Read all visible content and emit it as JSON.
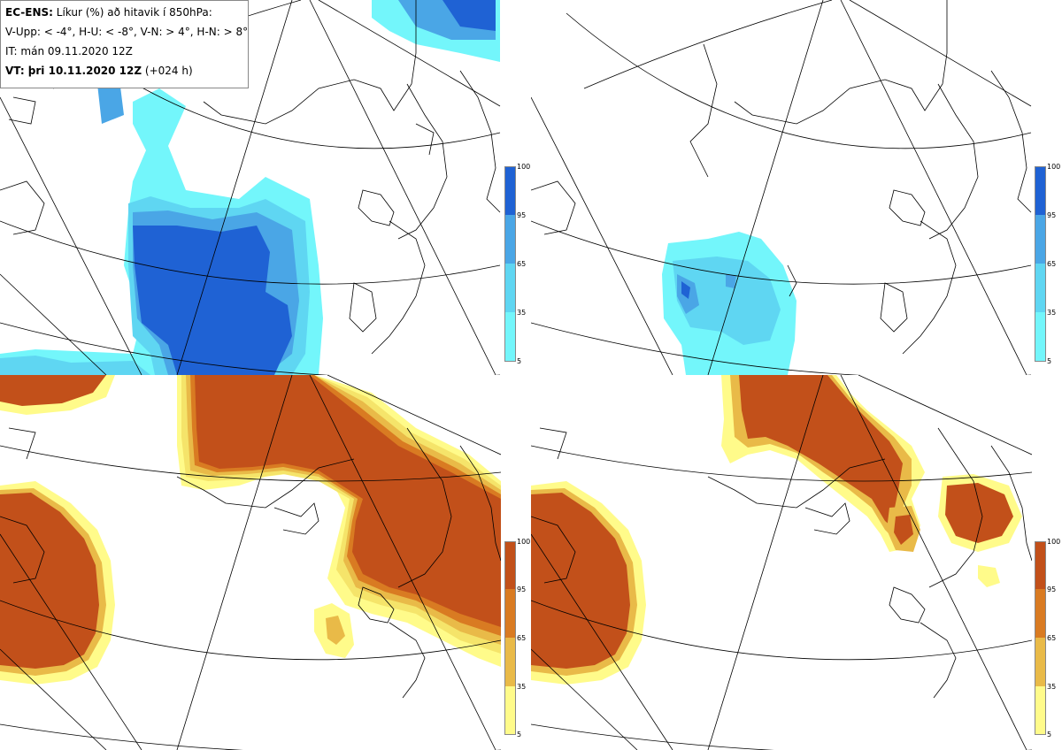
{
  "header": {
    "line1_bold": "EC-ENS:",
    "line1_rest": " Líkur (%) að hitavik í 850hPa:",
    "line2": "V-Upp: < -4°, H-U: < -8°, V-N: > 4°, H-N: > 8°",
    "line3": "IT: mán 09.11.2020 12Z",
    "line4_bold": "VT: þri 10.11.2020 12Z",
    "line4_rest": " (+024 h)"
  },
  "colorbar": {
    "ticks": [
      "100",
      "95",
      "65",
      "35",
      "5"
    ]
  },
  "panels": [
    {
      "id": "upper-left",
      "label": "V-Upp",
      "scale": "blue"
    },
    {
      "id": "upper-right",
      "label": "H-U",
      "scale": "blue"
    },
    {
      "id": "lower-left",
      "label": "V-N",
      "scale": "orange"
    },
    {
      "id": "lower-right",
      "label": "H-N",
      "scale": "orange"
    }
  ],
  "colors": {
    "blue": [
      "#73f6fb",
      "#5fd6f2",
      "#4aa6e6",
      "#2f7fdc",
      "#1f62d4"
    ],
    "orange": [
      "#fffb8a",
      "#f5e46a",
      "#e9ba48",
      "#d97b22",
      "#c2501a"
    ],
    "land": "#ffffff",
    "coast": "#000000",
    "grid": "#000000"
  }
}
